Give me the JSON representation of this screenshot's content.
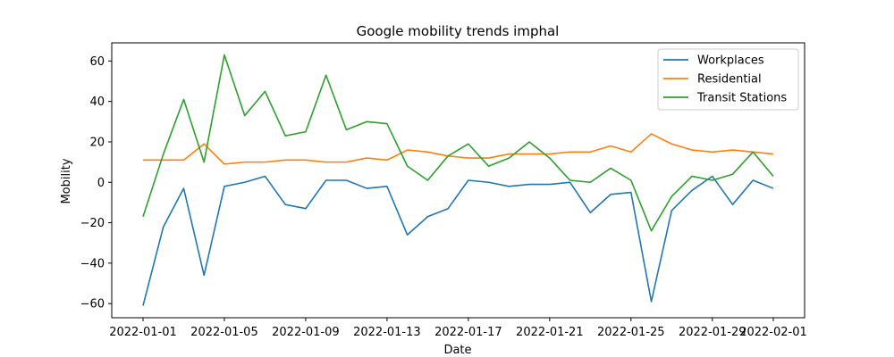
{
  "chart_data": {
    "type": "line",
    "title": "Google mobility trends imphal",
    "xlabel": "Date",
    "ylabel": "Mobility",
    "x": [
      "2022-01-01",
      "2022-01-02",
      "2022-01-03",
      "2022-01-04",
      "2022-01-05",
      "2022-01-06",
      "2022-01-07",
      "2022-01-08",
      "2022-01-09",
      "2022-01-10",
      "2022-01-11",
      "2022-01-12",
      "2022-01-13",
      "2022-01-14",
      "2022-01-15",
      "2022-01-16",
      "2022-01-17",
      "2022-01-18",
      "2022-01-19",
      "2022-01-20",
      "2022-01-21",
      "2022-01-22",
      "2022-01-23",
      "2022-01-24",
      "2022-01-25",
      "2022-01-26",
      "2022-01-27",
      "2022-01-28",
      "2022-01-29",
      "2022-01-30",
      "2022-01-31",
      "2022-02-01"
    ],
    "x_ticks": [
      "2022-01-01",
      "2022-01-05",
      "2022-01-09",
      "2022-01-13",
      "2022-01-17",
      "2022-01-21",
      "2022-01-25",
      "2022-01-29",
      "2022-02-01"
    ],
    "y_ticks": [
      -60,
      -40,
      -20,
      0,
      20,
      40,
      60
    ],
    "ylim": [
      -67,
      69
    ],
    "grid": false,
    "legend_position": "top-right",
    "series": [
      {
        "name": "Workplaces",
        "color": "#1f77b4",
        "values": [
          -61,
          -22,
          -3,
          -46,
          -2,
          0,
          3,
          -11,
          -13,
          1,
          1,
          -3,
          -2,
          -26,
          -17,
          -13,
          1,
          0,
          -2,
          -1,
          -1,
          0,
          -15,
          -6,
          -5,
          -59,
          -14,
          -4,
          3,
          -11,
          1,
          -3
        ]
      },
      {
        "name": "Residential",
        "color": "#ff7f0e",
        "values": [
          11,
          11,
          11,
          19,
          9,
          10,
          10,
          11,
          11,
          10,
          10,
          12,
          11,
          16,
          15,
          13,
          12,
          12,
          14,
          14,
          14,
          15,
          15,
          18,
          15,
          24,
          19,
          16,
          15,
          16,
          15,
          14
        ]
      },
      {
        "name": "Transit Stations",
        "color": "#2ca02c",
        "values": [
          -17,
          14,
          41,
          10,
          63,
          33,
          45,
          23,
          25,
          53,
          26,
          30,
          29,
          8,
          1,
          13,
          19,
          8,
          12,
          20,
          12,
          1,
          0,
          7,
          1,
          -24,
          -7,
          3,
          1,
          4,
          15,
          3
        ]
      }
    ]
  }
}
